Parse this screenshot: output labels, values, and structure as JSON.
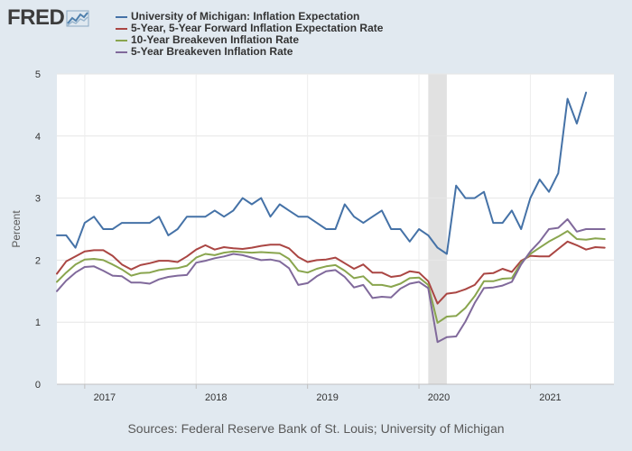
{
  "header": {
    "logo_text": "FRED",
    "logo_icon": "fred-graph-icon"
  },
  "source_note": "Sources: Federal Reserve Bank of St. Louis; University of Michigan",
  "colors": {
    "background": "#e1e9f0",
    "plot": "#ffffff",
    "recession": "#e1e1e1"
  },
  "chart_data": {
    "type": "line",
    "title": "",
    "ylabel": "Percent",
    "xlabel": "",
    "ylim": [
      0,
      5
    ],
    "yticks": [
      0,
      1,
      2,
      3,
      4,
      5
    ],
    "xlim": [
      "2016-10",
      "2021-10"
    ],
    "xticks": [
      "2017",
      "2018",
      "2019",
      "2020",
      "2021"
    ],
    "legend_position": "top-left",
    "grid": true,
    "recession": [
      "2020-02",
      "2020-04"
    ],
    "x": [
      "2016-10",
      "2016-11",
      "2016-12",
      "2017-01",
      "2017-02",
      "2017-03",
      "2017-04",
      "2017-05",
      "2017-06",
      "2017-07",
      "2017-08",
      "2017-09",
      "2017-10",
      "2017-11",
      "2017-12",
      "2018-01",
      "2018-02",
      "2018-03",
      "2018-04",
      "2018-05",
      "2018-06",
      "2018-07",
      "2018-08",
      "2018-09",
      "2018-10",
      "2018-11",
      "2018-12",
      "2019-01",
      "2019-02",
      "2019-03",
      "2019-04",
      "2019-05",
      "2019-06",
      "2019-07",
      "2019-08",
      "2019-09",
      "2019-10",
      "2019-11",
      "2019-12",
      "2020-01",
      "2020-02",
      "2020-03",
      "2020-04",
      "2020-05",
      "2020-06",
      "2020-07",
      "2020-08",
      "2020-09",
      "2020-10",
      "2020-11",
      "2020-12",
      "2021-01",
      "2021-02",
      "2021-03",
      "2021-04",
      "2021-05",
      "2021-06",
      "2021-07",
      "2021-08",
      "2021-09"
    ],
    "series": [
      {
        "name": "University of Michigan: Inflation Expectation",
        "color": "#4572a7",
        "values": [
          2.4,
          2.4,
          2.2,
          2.6,
          2.7,
          2.5,
          2.5,
          2.6,
          2.6,
          2.6,
          2.6,
          2.7,
          2.4,
          2.5,
          2.7,
          2.7,
          2.7,
          2.8,
          2.7,
          2.8,
          3.0,
          2.9,
          3.0,
          2.7,
          2.9,
          2.8,
          2.7,
          2.7,
          2.6,
          2.5,
          2.5,
          2.9,
          2.7,
          2.6,
          2.7,
          2.8,
          2.5,
          2.5,
          2.3,
          2.5,
          2.4,
          2.2,
          2.1,
          3.2,
          3.0,
          3.0,
          3.1,
          2.6,
          2.6,
          2.8,
          2.5,
          3.0,
          3.3,
          3.1,
          3.4,
          4.6,
          4.2,
          4.7,
          null,
          null
        ]
      },
      {
        "name": "5-Year, 5-Year Forward Inflation Expectation Rate",
        "color": "#aa4643",
        "values": [
          1.78,
          1.98,
          2.06,
          2.14,
          2.16,
          2.16,
          2.07,
          1.93,
          1.85,
          1.92,
          1.95,
          1.99,
          1.99,
          1.97,
          2.06,
          2.17,
          2.24,
          2.17,
          2.21,
          2.19,
          2.18,
          2.2,
          2.23,
          2.25,
          2.25,
          2.19,
          2.05,
          1.97,
          2.0,
          2.01,
          2.04,
          1.95,
          1.86,
          1.93,
          1.8,
          1.8,
          1.73,
          1.75,
          1.82,
          1.8,
          1.66,
          1.3,
          1.46,
          1.48,
          1.53,
          1.6,
          1.78,
          1.79,
          1.86,
          1.81,
          1.99,
          2.07,
          2.06,
          2.06,
          2.18,
          2.3,
          2.24,
          2.17,
          2.21,
          2.2
        ]
      },
      {
        "name": "10-Year Breakeven Inflation Rate",
        "color": "#89a54e",
        "values": [
          1.65,
          1.8,
          1.93,
          2.01,
          2.02,
          2.0,
          1.93,
          1.85,
          1.75,
          1.79,
          1.8,
          1.84,
          1.86,
          1.87,
          1.91,
          2.04,
          2.1,
          2.08,
          2.12,
          2.14,
          2.13,
          2.12,
          2.13,
          2.12,
          2.11,
          2.02,
          1.83,
          1.8,
          1.86,
          1.9,
          1.92,
          1.83,
          1.71,
          1.74,
          1.6,
          1.6,
          1.57,
          1.62,
          1.71,
          1.72,
          1.6,
          0.99,
          1.09,
          1.1,
          1.23,
          1.42,
          1.66,
          1.66,
          1.7,
          1.71,
          1.96,
          2.1,
          2.2,
          2.3,
          2.38,
          2.47,
          2.34,
          2.33,
          2.35,
          2.34
        ]
      },
      {
        "name": "5-Year Breakeven Inflation Rate",
        "color": "#80699b",
        "values": [
          1.5,
          1.67,
          1.8,
          1.89,
          1.9,
          1.83,
          1.75,
          1.74,
          1.64,
          1.64,
          1.62,
          1.69,
          1.73,
          1.75,
          1.76,
          1.96,
          1.99,
          2.03,
          2.06,
          2.1,
          2.08,
          2.04,
          2.0,
          2.01,
          1.98,
          1.87,
          1.6,
          1.63,
          1.74,
          1.82,
          1.84,
          1.73,
          1.56,
          1.6,
          1.39,
          1.41,
          1.4,
          1.54,
          1.62,
          1.65,
          1.55,
          0.68,
          0.76,
          0.77,
          1.01,
          1.31,
          1.55,
          1.56,
          1.59,
          1.65,
          1.93,
          2.14,
          2.3,
          2.5,
          2.52,
          2.66,
          2.46,
          2.5,
          2.5,
          2.5
        ]
      }
    ]
  }
}
